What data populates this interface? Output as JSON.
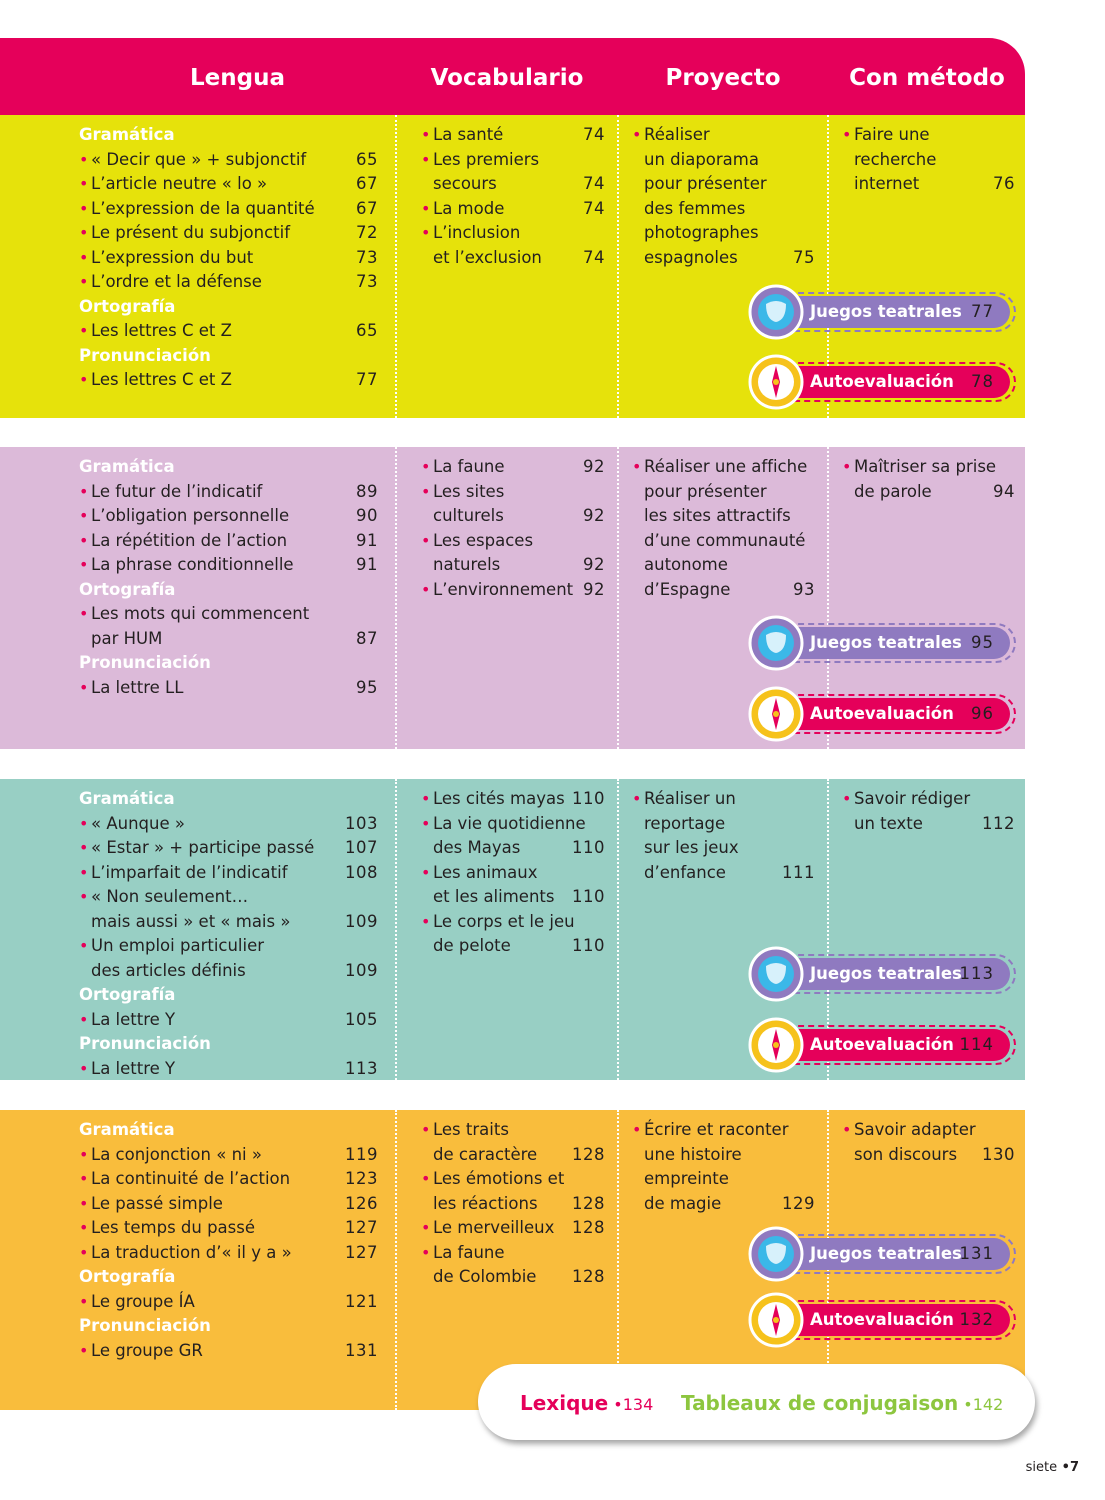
{
  "header": {
    "columns": [
      "Lengua",
      "Vocabulario",
      "Proyecto",
      "Con método"
    ]
  },
  "units": [
    {
      "lengua": [
        {
          "heading": "Gramática",
          "items": [
            {
              "lines": [
                "« Decir que » + subjonctif"
              ],
              "page": 65
            },
            {
              "lines": [
                "L’article neutre « lo »"
              ],
              "page": 67
            },
            {
              "lines": [
                "L’expression de la quantité"
              ],
              "page": 67
            },
            {
              "lines": [
                "Le présent du subjonctif"
              ],
              "page": 72
            },
            {
              "lines": [
                "L’expression du but"
              ],
              "page": 73
            },
            {
              "lines": [
                "L’ordre et la défense"
              ],
              "page": 73
            }
          ]
        },
        {
          "heading": "Ortografía",
          "items": [
            {
              "lines": [
                "Les lettres C et Z"
              ],
              "page": 65
            }
          ]
        },
        {
          "heading": "Pronunciación",
          "items": [
            {
              "lines": [
                "Les lettres C et Z"
              ],
              "page": 77
            }
          ]
        }
      ],
      "vocabulario": [
        {
          "lines": [
            "La santé"
          ],
          "page": 74
        },
        {
          "lines": [
            "Les premiers",
            "secours"
          ],
          "page": 74
        },
        {
          "lines": [
            "La mode"
          ],
          "page": 74
        },
        {
          "lines": [
            "L’inclusion",
            "et l’exclusion"
          ],
          "page": 74
        }
      ],
      "proyecto": {
        "lines": [
          "Réaliser",
          "un diaporama",
          "pour présenter",
          "des femmes",
          "photographes",
          "espagnoles"
        ],
        "page": 75
      },
      "metodo": {
        "lines": [
          "Faire une",
          "recherche",
          "internet"
        ],
        "page": 76
      },
      "juegos": {
        "label": "Juegos teatrales",
        "page": 77
      },
      "autoevaluacion": {
        "label": "Autoevaluación",
        "page": 78
      }
    },
    {
      "lengua": [
        {
          "heading": "Gramática",
          "items": [
            {
              "lines": [
                "Le futur de l’indicatif"
              ],
              "page": 89
            },
            {
              "lines": [
                "L’obligation personnelle"
              ],
              "page": 90
            },
            {
              "lines": [
                "La répétition de l’action"
              ],
              "page": 91
            },
            {
              "lines": [
                "La phrase conditionnelle"
              ],
              "page": 91
            }
          ]
        },
        {
          "heading": "Ortografía",
          "items": [
            {
              "lines": [
                "Les mots qui commencent",
                "par HUM"
              ],
              "page": 87
            }
          ]
        },
        {
          "heading": "Pronunciación",
          "items": [
            {
              "lines": [
                "La lettre LL"
              ],
              "page": 95
            }
          ]
        }
      ],
      "vocabulario": [
        {
          "lines": [
            "La faune"
          ],
          "page": 92
        },
        {
          "lines": [
            "Les sites",
            "culturels"
          ],
          "page": 92
        },
        {
          "lines": [
            "Les espaces",
            "naturels"
          ],
          "page": 92
        },
        {
          "lines": [
            "L’environnement"
          ],
          "page": 92
        }
      ],
      "proyecto": {
        "lines": [
          "Réaliser une affiche",
          "pour présenter",
          "les sites attractifs",
          "d’une communauté",
          "autonome",
          "d’Espagne"
        ],
        "page": 93
      },
      "metodo": {
        "lines": [
          "Maîtriser sa prise",
          "de parole"
        ],
        "page": 94
      },
      "juegos": {
        "label": "Juegos teatrales",
        "page": 95
      },
      "autoevaluacion": {
        "label": "Autoevaluación",
        "page": 96
      }
    },
    {
      "lengua": [
        {
          "heading": "Gramática",
          "items": [
            {
              "lines": [
                "« Aunque »"
              ],
              "page": 103
            },
            {
              "lines": [
                "« Estar » + participe passé"
              ],
              "page": 107
            },
            {
              "lines": [
                "L’imparfait de l’indicatif"
              ],
              "page": 108
            },
            {
              "lines": [
                "« Non seulement…",
                "mais aussi » et « mais »"
              ],
              "page": 109
            },
            {
              "lines": [
                "Un emploi particulier",
                "des articles définis"
              ],
              "page": 109
            }
          ]
        },
        {
          "heading": "Ortografía",
          "items": [
            {
              "lines": [
                "La lettre Y"
              ],
              "page": 105
            }
          ]
        },
        {
          "heading": "Pronunciación",
          "items": [
            {
              "lines": [
                "La lettre Y"
              ],
              "page": 113
            }
          ]
        }
      ],
      "vocabulario": [
        {
          "lines": [
            "Les cités mayas"
          ],
          "page": 110
        },
        {
          "lines": [
            "La vie quotidienne",
            "des Mayas"
          ],
          "page": 110
        },
        {
          "lines": [
            "Les animaux",
            "et les aliments"
          ],
          "page": 110
        },
        {
          "lines": [
            "Le corps et le jeu",
            "de pelote"
          ],
          "page": 110
        }
      ],
      "proyecto": {
        "lines": [
          "Réaliser un",
          "reportage",
          "sur les jeux",
          "d’enfance"
        ],
        "page": 111
      },
      "metodo": {
        "lines": [
          "Savoir rédiger",
          "un texte"
        ],
        "page": 112
      },
      "juegos": {
        "label": "Juegos teatrales",
        "page": 113
      },
      "autoevaluacion": {
        "label": "Autoevaluación",
        "page": 114
      }
    },
    {
      "lengua": [
        {
          "heading": "Gramática",
          "items": [
            {
              "lines": [
                "La conjonction « ni »"
              ],
              "page": 119
            },
            {
              "lines": [
                "La continuité de l’action"
              ],
              "page": 123
            },
            {
              "lines": [
                "Le passé simple"
              ],
              "page": 126
            },
            {
              "lines": [
                "Les temps du passé"
              ],
              "page": 127
            },
            {
              "lines": [
                "La traduction d’« il y a »"
              ],
              "page": 127
            }
          ]
        },
        {
          "heading": "Ortografía",
          "items": [
            {
              "lines": [
                "Le groupe ÍA"
              ],
              "page": 121
            }
          ]
        },
        {
          "heading": "Pronunciación",
          "items": [
            {
              "lines": [
                "Le groupe GR"
              ],
              "page": 131
            }
          ]
        }
      ],
      "vocabulario": [
        {
          "lines": [
            "Les traits",
            "de caractère"
          ],
          "page": 128
        },
        {
          "lines": [
            "Les émotions et",
            "les réactions"
          ],
          "page": 128
        },
        {
          "lines": [
            "Le merveilleux"
          ],
          "page": 128
        },
        {
          "lines": [
            "La faune",
            "de Colombie"
          ],
          "page": 128
        }
      ],
      "proyecto": {
        "lines": [
          "Écrire et raconter",
          "une histoire",
          "empreinte",
          "de magie"
        ],
        "page": 129
      },
      "metodo": {
        "lines": [
          "Savoir adapter",
          "son discours"
        ],
        "page": 130
      },
      "juegos": {
        "label": "Juegos teatrales",
        "page": 131
      },
      "autoevaluacion": {
        "label": "Autoevaluación",
        "page": 132
      }
    }
  ],
  "footer": {
    "lexique": {
      "title": "Lexique",
      "page": 134
    },
    "tableaux": {
      "title": "Tableaux de conjugaison",
      "page": 142
    }
  },
  "page_number": {
    "word": "siete",
    "number": 7
  }
}
